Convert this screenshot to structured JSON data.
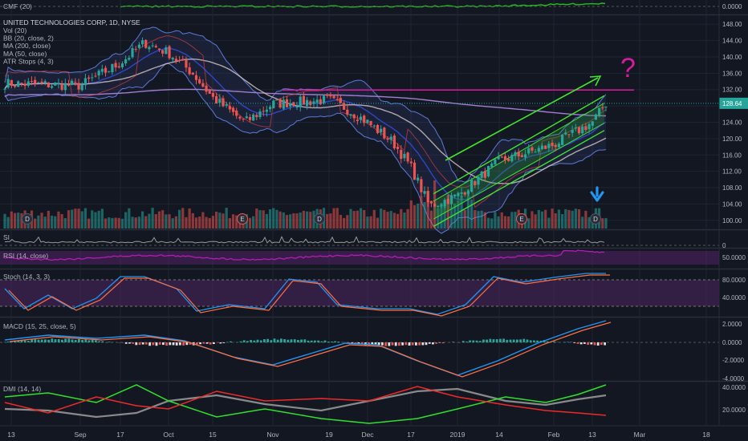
{
  "colors": {
    "background": "#131722",
    "up": "#26a69a",
    "down": "#ef5350",
    "grid": "#1f2433",
    "bb": "#5c7bd6",
    "ma200": "#a07fd0",
    "ma50": "#d8c8c8",
    "atr": "#d04040",
    "channel": "#3fe62c",
    "magenta": "#d81b9c",
    "arrow": "#2196f3",
    "cmf": "#22c01e",
    "rsi": "#b51bb5",
    "dmi_plus": "#2ce22c",
    "dmi_minus": "#ef2a2a",
    "adx": "#8a8a8a",
    "stoch_k": "#2196f3",
    "stoch_d": "#ff7043",
    "macd": "#2196f3",
    "signal": "#ff7043"
  },
  "panes": {
    "cmf": {
      "label": "CMF (20)",
      "tick": "0.0000"
    },
    "main": {
      "title": "UNITED TECHNOLOGIES CORP, 1D, NYSE",
      "legend": [
        "Vol (20)",
        "BB (20, close, 2)",
        "MA (200, close)",
        "MA (50, close)",
        "ATR Stops (4, 3)"
      ],
      "ticks": [
        "148.00",
        "144.00",
        "140.00",
        "136.00",
        "132.00",
        "128.00",
        "124.00",
        "120.00",
        "116.00",
        "112.00",
        "108.00",
        "104.00",
        "100.00"
      ],
      "price_label": "128.64",
      "question": "?"
    },
    "si": {
      "label": "SI",
      "tick": "0"
    },
    "rsi": {
      "label": "RSI (14, close)",
      "tick": "50.0000"
    },
    "stoch": {
      "label": "Stoch (14, 3, 3)",
      "ticks": [
        "80.0000",
        "40.0000"
      ]
    },
    "macd": {
      "label": "MACD (15, 25, close, 5)",
      "ticks": [
        "2.0000",
        "0.0000",
        "-2.0000",
        "-4.0000"
      ]
    },
    "dmi": {
      "label": "DMI (14, 14)",
      "ticks": [
        "40.0000",
        "20.0000"
      ]
    }
  },
  "xaxis": [
    "13",
    "Sep",
    "17",
    "Oct",
    "15",
    "Nov",
    "19",
    "Dec",
    "17",
    "2019",
    "14",
    "Feb",
    "13",
    "Mar",
    "18"
  ],
  "events": [
    "D",
    "E",
    "D",
    "E",
    "D"
  ],
  "chart_data": {
    "type": "candlestick",
    "symbol": "UNITED TECHNOLOGIES CORP",
    "interval": "1D",
    "exchange": "NYSE",
    "last_price": 128.64,
    "ylim": [
      98,
      150
    ],
    "price_anchors": [
      {
        "x": "13",
        "close": 133.5
      },
      {
        "x": "Sep",
        "close": 133.0
      },
      {
        "x": "17",
        "close": 138.5
      },
      {
        "x": "Sep end",
        "close": 143.5
      },
      {
        "x": "Oct",
        "close": 141.0
      },
      {
        "x": "Oct 9",
        "close": 136.0
      },
      {
        "x": "15",
        "close": 130.0
      },
      {
        "x": "Oct end",
        "close": 124.0
      },
      {
        "x": "Nov",
        "close": 128.5
      },
      {
        "x": "19",
        "close": 129.5
      },
      {
        "x": "Nov end",
        "close": 127.5
      },
      {
        "x": "Dec",
        "close": 124.0
      },
      {
        "x": "Dec 10",
        "close": 119.0
      },
      {
        "x": "17",
        "close": 113.0
      },
      {
        "x": "Dec 24",
        "close": 103.5
      },
      {
        "x": "2019",
        "close": 106.0
      },
      {
        "x": "14",
        "close": 114.5
      },
      {
        "x": "Feb",
        "close": 118.5
      },
      {
        "x": "13",
        "close": 124.0
      },
      {
        "x": "Feb 15",
        "close": 128.64
      }
    ],
    "horizontal_line": 131.9,
    "channel": {
      "upper": [
        [
          106.5,
          130.5
        ]
      ],
      "lower": [
        [
          98.5,
          122.0
        ]
      ]
    },
    "overlays": [
      "Bollinger Bands",
      "MA 200",
      "MA 50",
      "ATR Stops",
      "Volume"
    ]
  }
}
